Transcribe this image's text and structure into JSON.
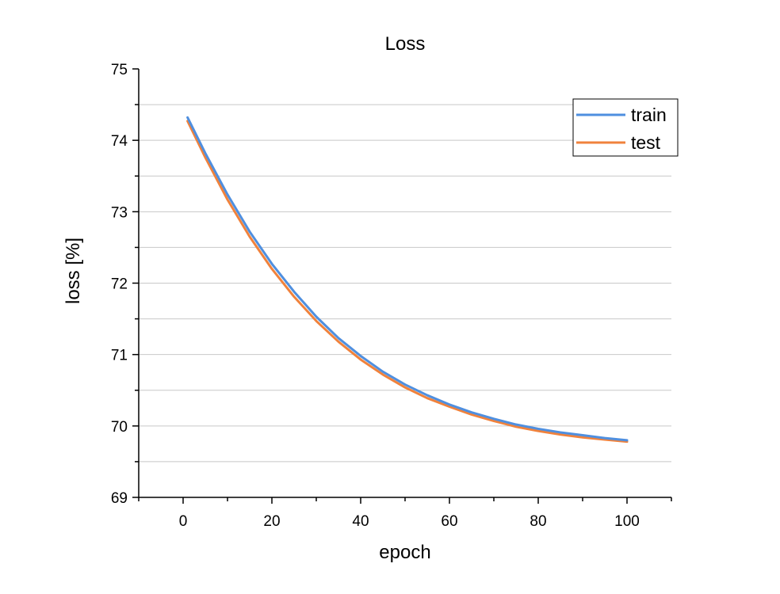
{
  "chart_data": {
    "type": "line",
    "title": "Loss",
    "xlabel": "epoch",
    "ylabel": "loss [%]",
    "xlim": [
      -10,
      110
    ],
    "ylim": [
      69,
      75
    ],
    "xticks": [
      0,
      20,
      40,
      60,
      80,
      100
    ],
    "yticks": [
      69,
      70,
      71,
      72,
      73,
      74,
      75
    ],
    "grid": true,
    "legend_position": "top-right",
    "series": [
      {
        "name": "train",
        "color": "#4f8fdf",
        "x": [
          1,
          5,
          10,
          15,
          20,
          25,
          30,
          35,
          40,
          45,
          50,
          55,
          60,
          65,
          70,
          75,
          80,
          85,
          90,
          95,
          100
        ],
        "y": [
          74.32,
          73.82,
          73.24,
          72.72,
          72.27,
          71.88,
          71.53,
          71.23,
          70.98,
          70.76,
          70.58,
          70.43,
          70.3,
          70.19,
          70.1,
          70.02,
          69.96,
          69.91,
          69.87,
          69.83,
          69.8
        ]
      },
      {
        "name": "test",
        "color": "#f0823c",
        "x": [
          1,
          5,
          10,
          15,
          20,
          25,
          30,
          35,
          40,
          45,
          50,
          55,
          60,
          65,
          70,
          75,
          80,
          85,
          90,
          95,
          100
        ],
        "y": [
          74.27,
          73.76,
          73.17,
          72.65,
          72.2,
          71.81,
          71.47,
          71.18,
          70.93,
          70.72,
          70.54,
          70.39,
          70.27,
          70.16,
          70.07,
          69.99,
          69.93,
          69.88,
          69.84,
          69.81,
          69.78
        ]
      }
    ]
  }
}
